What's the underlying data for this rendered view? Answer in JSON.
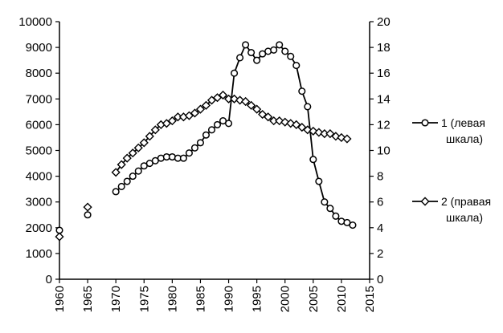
{
  "chart_data": {
    "type": "line",
    "title": "",
    "xlabel": "",
    "ylabel": "",
    "x_ticks": [
      "1960",
      "1965",
      "1970",
      "1975",
      "1980",
      "1985",
      "1990",
      "1995",
      "2000",
      "2005",
      "2010",
      "2015"
    ],
    "xlim": [
      1960,
      2015
    ],
    "y_left_ticks": [
      "0",
      "1000",
      "2000",
      "3000",
      "4000",
      "5000",
      "6000",
      "7000",
      "8000",
      "9000",
      "10000"
    ],
    "ylim_left": [
      0,
      10000
    ],
    "y_right_ticks": [
      "0",
      "2",
      "4",
      "6",
      "8",
      "10",
      "12",
      "14",
      "16",
      "18",
      "20"
    ],
    "ylim_right": [
      0,
      20
    ],
    "grid": false,
    "legend_position": "right",
    "legend": [
      {
        "line1": "1 (левая",
        "line2": "шкала)",
        "marker": "circle"
      },
      {
        "line1": "2 (правая",
        "line2": "шкала)",
        "marker": "diamond"
      }
    ],
    "series": [
      {
        "name": "1 (левая шкала)",
        "axis": "left",
        "marker": "circle",
        "segments": [
          [
            [
              1960,
              1900
            ]
          ],
          [
            [
              1965,
              2500
            ]
          ],
          [
            [
              1970,
              3400
            ],
            [
              1971,
              3600
            ],
            [
              1972,
              3800
            ],
            [
              1973,
              4000
            ],
            [
              1974,
              4200
            ],
            [
              1975,
              4400
            ],
            [
              1976,
              4500
            ],
            [
              1977,
              4600
            ],
            [
              1978,
              4700
            ],
            [
              1979,
              4750
            ],
            [
              1980,
              4750
            ],
            [
              1981,
              4700
            ],
            [
              1982,
              4700
            ],
            [
              1983,
              4900
            ],
            [
              1984,
              5100
            ],
            [
              1985,
              5300
            ],
            [
              1986,
              5600
            ],
            [
              1987,
              5800
            ],
            [
              1988,
              6000
            ],
            [
              1989,
              6150
            ],
            [
              1990,
              6050
            ],
            [
              1991,
              8000
            ],
            [
              1992,
              8600
            ],
            [
              1993,
              9100
            ],
            [
              1994,
              8800
            ],
            [
              1995,
              8500
            ],
            [
              1996,
              8750
            ],
            [
              1997,
              8850
            ],
            [
              1998,
              8900
            ],
            [
              1999,
              9100
            ],
            [
              2000,
              8850
            ],
            [
              2001,
              8650
            ],
            [
              2002,
              8300
            ],
            [
              2003,
              7300
            ],
            [
              2004,
              6700
            ],
            [
              2005,
              4650
            ],
            [
              2006,
              3800
            ],
            [
              2007,
              3000
            ],
            [
              2008,
              2750
            ],
            [
              2009,
              2450
            ],
            [
              2010,
              2250
            ],
            [
              2011,
              2200
            ],
            [
              2012,
              2100
            ]
          ]
        ]
      },
      {
        "name": "2 (правая шкала)",
        "axis": "right",
        "marker": "diamond",
        "segments": [
          [
            [
              1960,
              3.3
            ]
          ],
          [
            [
              1965,
              5.6
            ]
          ],
          [
            [
              1970,
              8.3
            ],
            [
              1971,
              8.9
            ],
            [
              1972,
              9.4
            ],
            [
              1973,
              9.8
            ],
            [
              1974,
              10.2
            ],
            [
              1975,
              10.6
            ],
            [
              1976,
              11.1
            ],
            [
              1977,
              11.6
            ],
            [
              1978,
              12.0
            ],
            [
              1979,
              12.1
            ],
            [
              1980,
              12.3
            ],
            [
              1981,
              12.6
            ],
            [
              1982,
              12.6
            ],
            [
              1983,
              12.7
            ],
            [
              1984,
              12.9
            ],
            [
              1985,
              13.2
            ],
            [
              1986,
              13.5
            ],
            [
              1987,
              13.9
            ],
            [
              1988,
              14.1
            ],
            [
              1989,
              14.3
            ],
            [
              1990,
              14.0
            ],
            [
              1991,
              14.0
            ],
            [
              1992,
              13.9
            ],
            [
              1993,
              13.8
            ],
            [
              1994,
              13.5
            ],
            [
              1995,
              13.2
            ],
            [
              1996,
              12.8
            ],
            [
              1997,
              12.6
            ],
            [
              1998,
              12.3
            ],
            [
              1999,
              12.3
            ],
            [
              2000,
              12.2
            ],
            [
              2001,
              12.1
            ],
            [
              2002,
              12.0
            ],
            [
              2003,
              11.8
            ],
            [
              2004,
              11.6
            ],
            [
              2005,
              11.5
            ],
            [
              2006,
              11.4
            ],
            [
              2007,
              11.3
            ],
            [
              2008,
              11.3
            ],
            [
              2009,
              11.1
            ],
            [
              2010,
              11.0
            ],
            [
              2011,
              10.9
            ]
          ]
        ]
      }
    ]
  }
}
